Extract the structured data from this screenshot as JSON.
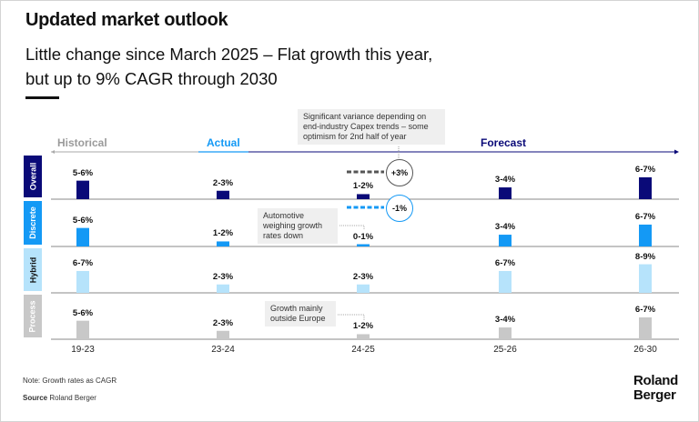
{
  "header": {
    "title": "Updated market outlook",
    "subtitle_line1": "Little change since March 2025 – Flat growth this year,",
    "subtitle_line2": "but up to 9% CAGR through 2030"
  },
  "phases": {
    "historical": "Historical",
    "actual": "Actual",
    "forecast": "Forecast"
  },
  "colors": {
    "overall": "#0a0a78",
    "discrete": "#1499f5",
    "hybrid": "#b6e3fb",
    "process": "#c8c8c8",
    "historical_text": "#9a9a9a",
    "gray_dash": "#555555"
  },
  "chart_data": {
    "type": "bar",
    "categories": [
      "19-23",
      "23-24",
      "24-25",
      "25-26",
      "26-30"
    ],
    "series": [
      {
        "name": "Overall",
        "labels": [
          "5-6%",
          "2-3%",
          "1-2%",
          "3-4%",
          "6-7%"
        ],
        "values": [
          5.5,
          2.5,
          1.5,
          3.5,
          6.5
        ]
      },
      {
        "name": "Discrete",
        "labels": [
          "5-6%",
          "1-2%",
          "0-1%",
          "3-4%",
          "6-7%"
        ],
        "values": [
          5.5,
          1.5,
          0.5,
          3.5,
          6.5
        ]
      },
      {
        "name": "Hybrid",
        "labels": [
          "6-7%",
          "2-3%",
          "2-3%",
          "6-7%",
          "8-9%"
        ],
        "values": [
          6.5,
          2.5,
          2.5,
          6.5,
          8.5
        ]
      },
      {
        "name": "Process",
        "labels": [
          "5-6%",
          "2-3%",
          "1-2%",
          "3-4%",
          "6-7%"
        ],
        "values": [
          5.5,
          2.5,
          1.5,
          3.5,
          6.5
        ]
      }
    ],
    "annotations": {
      "variance": "Significant variance depending on end-industry Capex trends – some optimism for 2nd half of year",
      "overall_change": "+3%",
      "discrete_change": "-1%",
      "automotive": "Automotive weighing growth rates down",
      "process": "Growth mainly outside Europe"
    }
  },
  "footer": {
    "note": "Note: Growth rates as CAGR",
    "source_label": "Source",
    "source_value": "Roland Berger",
    "logo_line1": "Roland",
    "logo_line2": "Berger"
  }
}
